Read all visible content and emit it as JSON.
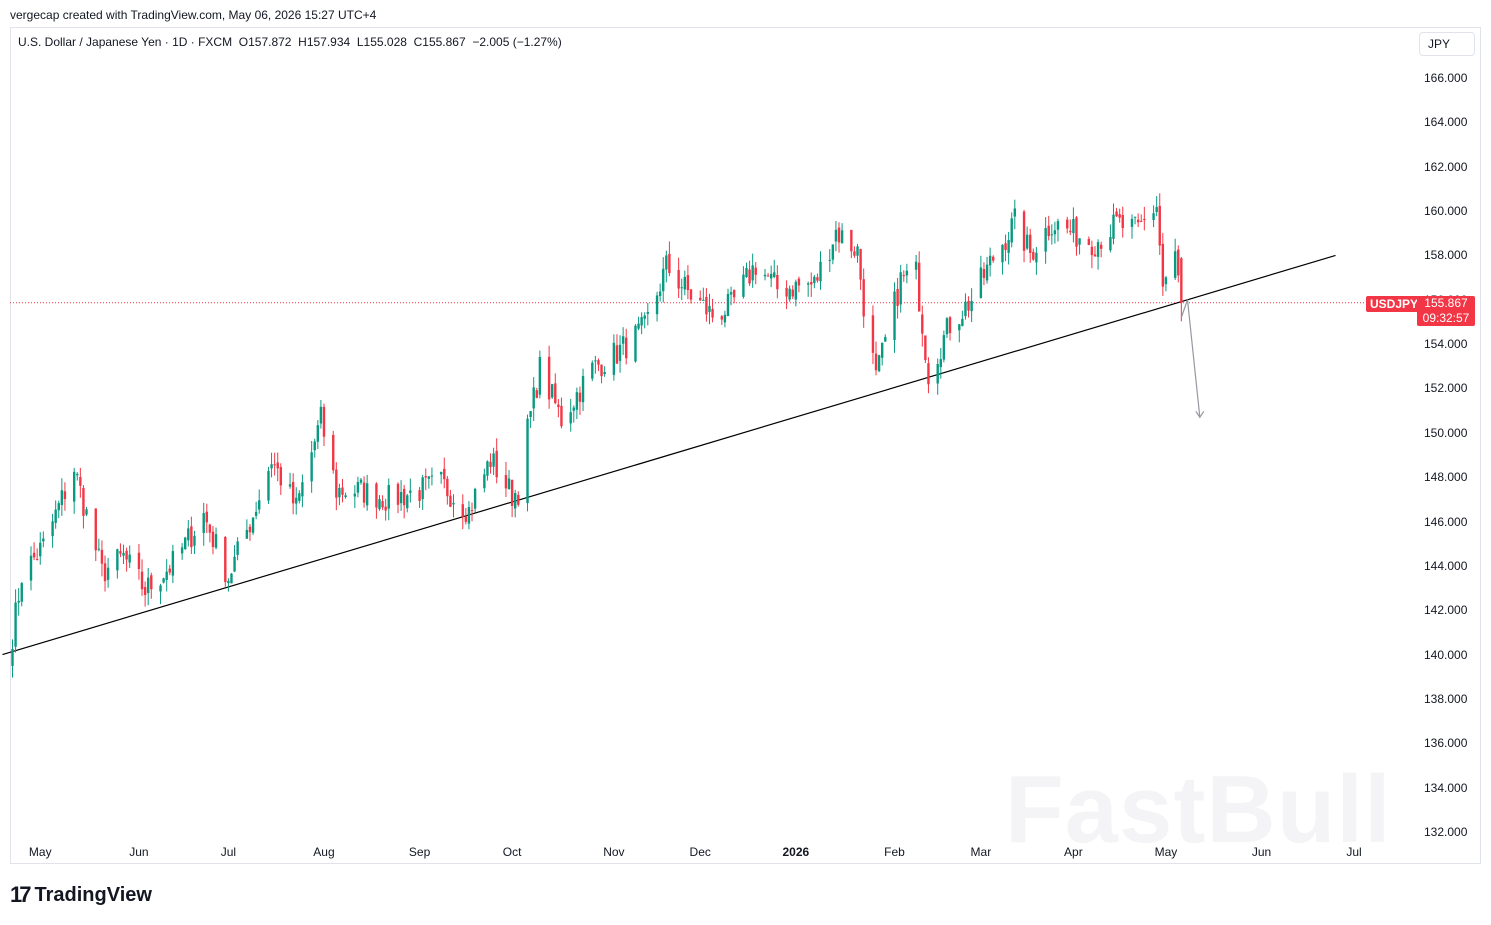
{
  "header": {
    "created_by": "vergecap created with TradingView.com, May 06, 2026 15:27 UTC+4"
  },
  "legend": {
    "symbol": "U.S. Dollar / Japanese Yen · 1D · FXCM",
    "open": "O157.872",
    "high": "H157.934",
    "low": "L155.028",
    "close": "C155.867",
    "change": "−2.005 (−1.27%)"
  },
  "currency_button": "JPY",
  "price_badge": {
    "symbol": "USDJPY",
    "price": "155.867",
    "countdown": "09:32:57"
  },
  "branding": {
    "logo_mark": "17",
    "logo_text": "TradingView",
    "watermark": "FastBull"
  },
  "colors": {
    "up": "#089981",
    "down": "#f23645",
    "price_line": "#f23645",
    "trendline": "#000000",
    "projection": "#9598a1"
  },
  "chart_data": {
    "type": "candlestick",
    "symbol": "USDJPY",
    "interval": "1D",
    "ylim": [
      131.5,
      167.8
    ],
    "y_ticks": [
      "166.000",
      "164.000",
      "162.000",
      "160.000",
      "158.000",
      "156.000",
      "154.000",
      "152.000",
      "150.000",
      "148.000",
      "146.000",
      "144.000",
      "142.000",
      "140.000",
      "138.000",
      "136.000",
      "134.000",
      "132.000"
    ],
    "y_tick_values": [
      166,
      164,
      162,
      160,
      158,
      156,
      154,
      152,
      150,
      148,
      146,
      144,
      142,
      140,
      138,
      136,
      134,
      132
    ],
    "x_ticks": [
      {
        "label": "May",
        "date": "2025-05-01"
      },
      {
        "label": "Jun",
        "date": "2025-06-02"
      },
      {
        "label": "Jul",
        "date": "2025-07-01"
      },
      {
        "label": "Aug",
        "date": "2025-08-01"
      },
      {
        "label": "Sep",
        "date": "2025-09-01"
      },
      {
        "label": "Oct",
        "date": "2025-10-01"
      },
      {
        "label": "Nov",
        "date": "2025-11-03"
      },
      {
        "label": "Dec",
        "date": "2025-12-01"
      },
      {
        "label": "2026",
        "date": "2026-01-01",
        "bold": true
      },
      {
        "label": "Feb",
        "date": "2026-02-02"
      },
      {
        "label": "Mar",
        "date": "2026-03-02"
      },
      {
        "label": "Apr",
        "date": "2026-04-01"
      },
      {
        "label": "May",
        "date": "2026-05-01"
      },
      {
        "label": "Jun",
        "date": "2026-06-01"
      },
      {
        "label": "Jul",
        "date": "2026-07-01"
      }
    ],
    "last_close": 155.867,
    "anchors": [
      {
        "date": "2025-04-22",
        "close": 140.9
      },
      {
        "date": "2025-04-25",
        "close": 143.6
      },
      {
        "date": "2025-05-02",
        "close": 144.9
      },
      {
        "date": "2025-05-12",
        "close": 148.4
      },
      {
        "date": "2025-05-21",
        "close": 143.7
      },
      {
        "date": "2025-05-28",
        "close": 144.4
      },
      {
        "date": "2025-06-04",
        "close": 142.9
      },
      {
        "date": "2025-06-13",
        "close": 144.1
      },
      {
        "date": "2025-06-23",
        "close": 146.3
      },
      {
        "date": "2025-07-01",
        "close": 143.5
      },
      {
        "date": "2025-07-09",
        "close": 146.3
      },
      {
        "date": "2025-07-15",
        "close": 148.8
      },
      {
        "date": "2025-07-23",
        "close": 146.6
      },
      {
        "date": "2025-07-31",
        "close": 150.6
      },
      {
        "date": "2025-08-05",
        "close": 147.4
      },
      {
        "date": "2025-08-13",
        "close": 147.4
      },
      {
        "date": "2025-08-22",
        "close": 147.0
      },
      {
        "date": "2025-09-01",
        "close": 147.4
      },
      {
        "date": "2025-09-08",
        "close": 147.7
      },
      {
        "date": "2025-09-17",
        "close": 146.5
      },
      {
        "date": "2025-09-24",
        "close": 148.8
      },
      {
        "date": "2025-10-01",
        "close": 147.2
      },
      {
        "date": "2025-10-03",
        "close": 147.4
      },
      {
        "date": "2025-10-06",
        "close": 150.1
      },
      {
        "date": "2025-10-10",
        "close": 152.9
      },
      {
        "date": "2025-10-17",
        "close": 150.6
      },
      {
        "date": "2025-10-27",
        "close": 152.9
      },
      {
        "date": "2025-11-04",
        "close": 153.6
      },
      {
        "date": "2025-11-13",
        "close": 154.7
      },
      {
        "date": "2025-11-20",
        "close": 157.5
      },
      {
        "date": "2025-11-28",
        "close": 156.2
      },
      {
        "date": "2025-12-05",
        "close": 155.3
      },
      {
        "date": "2025-12-11",
        "close": 155.7
      },
      {
        "date": "2025-12-19",
        "close": 157.6
      },
      {
        "date": "2025-12-26",
        "close": 156.5
      },
      {
        "date": "2026-01-07",
        "close": 156.7
      },
      {
        "date": "2026-01-14",
        "close": 159.1
      },
      {
        "date": "2026-01-21",
        "close": 158.2
      },
      {
        "date": "2026-01-23",
        "close": 155.8
      },
      {
        "date": "2026-01-27",
        "close": 152.4
      },
      {
        "date": "2026-02-04",
        "close": 156.9
      },
      {
        "date": "2026-02-09",
        "close": 157.2
      },
      {
        "date": "2026-02-13",
        "close": 152.7
      },
      {
        "date": "2026-02-20",
        "close": 154.9
      },
      {
        "date": "2026-02-27",
        "close": 156.0
      },
      {
        "date": "2026-03-06",
        "close": 157.9
      },
      {
        "date": "2026-03-13",
        "close": 159.5
      },
      {
        "date": "2026-03-18",
        "close": 158.1
      },
      {
        "date": "2026-03-25",
        "close": 159.5
      },
      {
        "date": "2026-04-01",
        "close": 159.0
      },
      {
        "date": "2026-04-08",
        "close": 158.6
      },
      {
        "date": "2026-04-15",
        "close": 159.4
      },
      {
        "date": "2026-04-22",
        "close": 159.1
      },
      {
        "date": "2026-04-28",
        "close": 160.3
      },
      {
        "date": "2026-04-30",
        "close": 156.6
      },
      {
        "date": "2026-05-04",
        "close": 157.9
      },
      {
        "date": "2026-05-06",
        "close": 155.867
      }
    ],
    "trendline": {
      "from": {
        "date": "2025-04-22",
        "price": 140.0
      },
      "to": {
        "date": "2026-06-25",
        "price": 158.0
      }
    },
    "projection": [
      {
        "date": "2026-05-06",
        "price": 155.2
      },
      {
        "date": "2026-05-08",
        "price": 156.0
      },
      {
        "date": "2026-05-12",
        "price": 150.7
      }
    ]
  }
}
